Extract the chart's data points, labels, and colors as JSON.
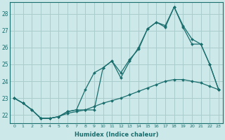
{
  "xlabel": "Humidex (Indice chaleur)",
  "background_color": "#cce8e8",
  "grid_color": "#aacccc",
  "line_color": "#1a6e6e",
  "xlim": [
    -0.5,
    23.5
  ],
  "ylim": [
    21.5,
    28.7
  ],
  "xticks": [
    0,
    1,
    2,
    3,
    4,
    5,
    6,
    7,
    8,
    9,
    10,
    11,
    12,
    13,
    14,
    15,
    16,
    17,
    18,
    19,
    20,
    21,
    22,
    23
  ],
  "yticks": [
    22,
    23,
    24,
    25,
    26,
    27,
    28
  ],
  "line1_x": [
    0,
    1,
    2,
    3,
    4,
    5,
    6,
    7,
    8,
    9,
    10,
    11,
    12,
    13,
    14,
    15,
    16,
    17,
    18,
    19,
    20,
    21,
    22,
    23
  ],
  "line1_y": [
    23.0,
    22.7,
    22.3,
    21.8,
    21.8,
    21.9,
    22.2,
    22.3,
    23.5,
    24.5,
    24.8,
    25.2,
    24.5,
    25.3,
    25.9,
    27.1,
    27.5,
    27.3,
    28.4,
    27.3,
    26.5,
    26.2,
    25.0,
    23.5
  ],
  "line2_x": [
    0,
    1,
    2,
    3,
    4,
    5,
    6,
    7,
    8,
    9,
    10,
    11,
    12,
    13,
    14,
    15,
    16,
    17,
    18,
    19,
    20,
    21,
    22,
    23
  ],
  "line2_y": [
    23.0,
    22.7,
    22.3,
    21.8,
    21.8,
    21.9,
    22.2,
    22.3,
    22.3,
    22.3,
    24.8,
    25.2,
    24.2,
    25.2,
    26.0,
    27.1,
    27.5,
    27.2,
    28.4,
    27.2,
    26.2,
    26.2,
    25.0,
    23.5
  ],
  "line3_x": [
    0,
    1,
    2,
    3,
    4,
    5,
    6,
    7,
    8,
    9,
    10,
    11,
    12,
    13,
    14,
    15,
    16,
    17,
    18,
    19,
    20,
    21,
    22,
    23
  ],
  "line3_y": [
    23.0,
    22.7,
    22.3,
    21.8,
    21.8,
    21.9,
    22.1,
    22.2,
    22.3,
    22.5,
    22.7,
    22.85,
    23.0,
    23.2,
    23.4,
    23.6,
    23.8,
    24.0,
    24.1,
    24.1,
    24.0,
    23.9,
    23.7,
    23.5
  ]
}
